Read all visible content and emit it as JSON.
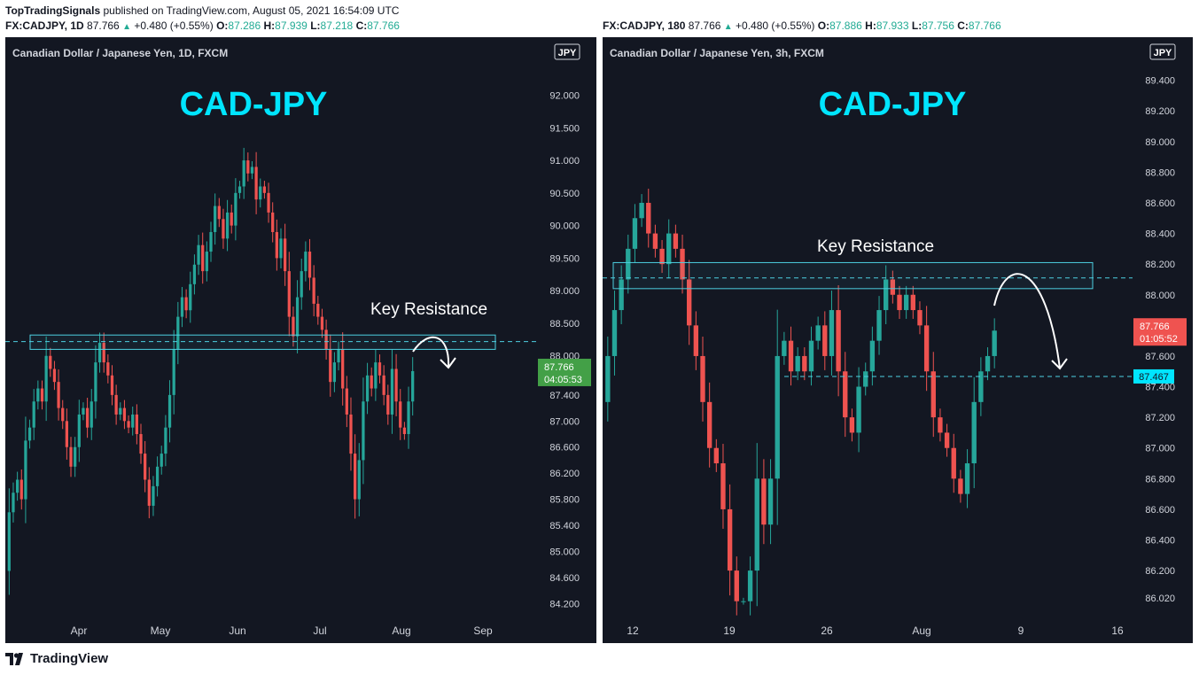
{
  "header": {
    "publisher": "TopTradingSignals",
    "published_text": "published on TradingView.com, August 05, 2021 16:54:09 UTC"
  },
  "footer": {
    "brand": "TradingView"
  },
  "colors": {
    "background": "#131722",
    "up": "#26a69a",
    "down": "#ef5350",
    "title": "#00e5ff",
    "zone": "#4dd0e1",
    "text": "#d1d4dc"
  },
  "chart_data": [
    {
      "type": "candlestick",
      "symbol_line": {
        "symbol": "FX:CADJPY, 1D",
        "last": "87.766",
        "change": "+0.480 (+0.55%)",
        "open": "87.286",
        "high": "87.939",
        "low": "87.218",
        "close": "87.766"
      },
      "panel_title": "Canadian Dollar / Japanese Yen, 1D, FXCM",
      "title": "CAD-JPY",
      "currency_badge": "JPY",
      "annotation": "Key Resistance",
      "ylim": [
        84.0,
        92.7
      ],
      "y_ticks": [
        "92.000",
        "91.500",
        "91.000",
        "90.500",
        "90.000",
        "89.500",
        "89.000",
        "88.500",
        "88.000",
        "87.400",
        "87.000",
        "86.600",
        "86.200",
        "85.800",
        "85.400",
        "85.000",
        "84.600",
        "84.200"
      ],
      "x_ticks": [
        "Apr",
        "May",
        "Jun",
        "Jul",
        "Aug",
        "Sep"
      ],
      "resistance_zone": [
        88.1,
        88.32
      ],
      "resistance_line": 88.22,
      "price_label": {
        "value": "87.766",
        "countdown": "04:05:53",
        "color": "#43a047"
      },
      "path": [
        84.7,
        85.6,
        85.9,
        86.1,
        85.8,
        86.7,
        86.9,
        87.3,
        87.5,
        87.3,
        88.0,
        87.8,
        87.6,
        87.2,
        87.0,
        86.6,
        86.3,
        86.6,
        87.1,
        87.2,
        86.9,
        87.3,
        87.9,
        88.2,
        87.9,
        87.7,
        87.4,
        87.1,
        87.2,
        87.0,
        86.9,
        87.1,
        86.8,
        86.5,
        86.1,
        85.7,
        86.0,
        86.3,
        86.5,
        86.9,
        87.4,
        88.1,
        88.6,
        88.9,
        88.7,
        89.1,
        89.4,
        89.7,
        89.3,
        89.6,
        89.9,
        90.3,
        90.1,
        89.8,
        90.2,
        90.0,
        90.5,
        90.6,
        91.0,
        90.8,
        90.9,
        90.4,
        90.6,
        90.5,
        90.2,
        89.9,
        89.5,
        89.8,
        89.3,
        88.6,
        88.3,
        88.9,
        89.3,
        89.6,
        89.2,
        88.8,
        88.6,
        88.4,
        88.1,
        87.6,
        87.9,
        88.1,
        87.5,
        87.1,
        86.5,
        85.8,
        86.4,
        87.3,
        87.7,
        87.5,
        87.9,
        87.7,
        87.4,
        87.1,
        87.8,
        87.3,
        86.9,
        86.8,
        87.3,
        87.766
      ]
    },
    {
      "type": "candlestick",
      "symbol_line": {
        "symbol": "FX:CADJPY, 180",
        "last": "87.766",
        "change": "+0.480 (+0.55%)",
        "open": "87.886",
        "high": "87.933",
        "low": "87.756",
        "close": "87.766"
      },
      "panel_title": "Canadian Dollar / Japanese Yen, 3h, FXCM",
      "title": "CAD-JPY",
      "currency_badge": "JPY",
      "annotation": "Key Resistance",
      "ylim": [
        85.9,
        89.6
      ],
      "y_ticks": [
        "89.400",
        "89.200",
        "89.000",
        "88.800",
        "88.600",
        "88.400",
        "88.200",
        "88.000",
        "87.800",
        "87.600",
        "87.400",
        "87.200",
        "87.000",
        "86.800",
        "86.600",
        "86.400",
        "86.200",
        "86.020"
      ],
      "x_ticks": [
        "12",
        "19",
        "26",
        "Aug",
        "9",
        "16"
      ],
      "resistance_zone": [
        88.04,
        88.21
      ],
      "resistance_line": 88.11,
      "support_line": {
        "value": 87.467,
        "label": "87.467"
      },
      "price_label": {
        "value": "87.766",
        "countdown": "01:05:52",
        "color": "#ef5350"
      },
      "path": [
        87.3,
        87.6,
        87.9,
        88.1,
        88.3,
        88.5,
        88.6,
        88.4,
        88.3,
        88.2,
        88.4,
        88.3,
        88.1,
        87.8,
        87.6,
        87.3,
        87.0,
        86.9,
        86.6,
        86.2,
        86.0,
        86.0,
        86.2,
        86.8,
        86.5,
        86.8,
        87.6,
        87.7,
        87.5,
        87.6,
        87.5,
        87.7,
        87.8,
        87.6,
        87.9,
        87.5,
        87.2,
        87.1,
        87.4,
        87.5,
        87.7,
        87.9,
        88.1,
        88.0,
        87.9,
        88.0,
        87.9,
        87.8,
        87.5,
        87.2,
        87.1,
        87.0,
        86.8,
        86.7,
        86.9,
        87.3,
        87.5,
        87.6,
        87.766
      ]
    }
  ]
}
